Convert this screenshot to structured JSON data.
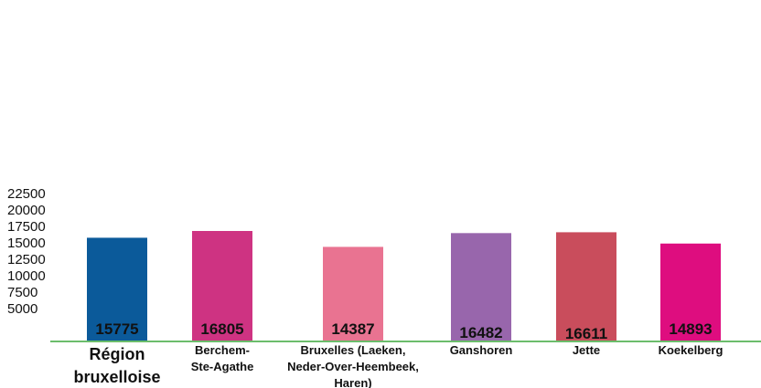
{
  "chart_data": {
    "type": "bar",
    "categories": [
      [
        "Région",
        "bruxelloise"
      ],
      [
        "Berchem-",
        "Ste-Agathe"
      ],
      [
        "Bruxelles (Laeken,",
        "Neder-Over-Heembeek,",
        "Haren)"
      ],
      [
        "Ganshoren"
      ],
      [
        "Jette"
      ],
      [
        "Koekelberg"
      ]
    ],
    "values": [
      15775,
      16805,
      14387,
      16482,
      16611,
      14893
    ],
    "data_labels": [
      "15775",
      "16805",
      "14387",
      "16482",
      "16611",
      "14893"
    ],
    "bar_colors": [
      "#0b5a9a",
      "#ce3382",
      "#e97391",
      "#9866ac",
      "#c94d5c",
      "#de0d7f"
    ],
    "axis_color": "#6bbd6b",
    "y_ticks": [
      "5000",
      "7500",
      "10000",
      "12500",
      "15000",
      "17500",
      "20000",
      "22500"
    ],
    "y_tick_values": [
      5000,
      7500,
      10000,
      12500,
      15000,
      17500,
      20000,
      22500
    ],
    "title": "",
    "xlabel": "",
    "ylabel": "",
    "grid": false
  }
}
